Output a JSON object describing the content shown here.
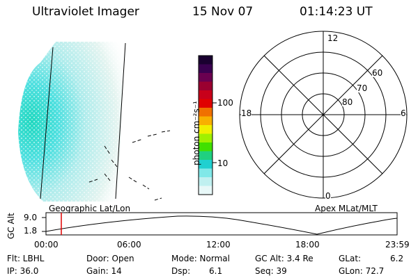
{
  "header": {
    "instrument": "Ultraviolet Imager",
    "date": "15 Nov 07",
    "time": "01:14:23 UT"
  },
  "colorbar": {
    "unit_label": "photon cm⁻²s⁻¹",
    "tick_labels": [
      "100",
      "10"
    ],
    "colors": [
      "#1a0030",
      "#3a0050",
      "#6a0050",
      "#9a0030",
      "#c8001a",
      "#e00000",
      "#f07000",
      "#f8b000",
      "#f0f000",
      "#a0f000",
      "#40e000",
      "#20d080",
      "#20d0d0",
      "#80e8e8",
      "#c0f0f0",
      "#e8f8f8"
    ]
  },
  "polar": {
    "mlt_labels": [
      "12",
      "18",
      "6",
      "0"
    ],
    "lat_labels": [
      "60",
      "70",
      "80"
    ]
  },
  "timeline": {
    "y_axis_label": "GC Alt",
    "y_ticks": [
      "9.0",
      "1.8"
    ],
    "left_caption": "Geographic Lat/Lon",
    "right_caption": "Apex MLat/MLT",
    "x_ticks": [
      "00:00",
      "06:00",
      "12:00",
      "18:00",
      "23:59"
    ],
    "marker_time": "01:14",
    "marker_color": "#e00000"
  },
  "status": {
    "flt": "Flt: LBHL",
    "ip": "IP: 36.0",
    "door": "Door: Open",
    "gain": "Gain: 14",
    "mode": "Mode: Normal",
    "dsp_label": "Dsp:",
    "dsp_value": "6.1",
    "gcalt": "GC Alt: 3.4 Re",
    "seq": "Seq: 39",
    "glat_label": "GLat:",
    "glat_value": "6.2",
    "glon": "GLon: 72.7"
  }
}
